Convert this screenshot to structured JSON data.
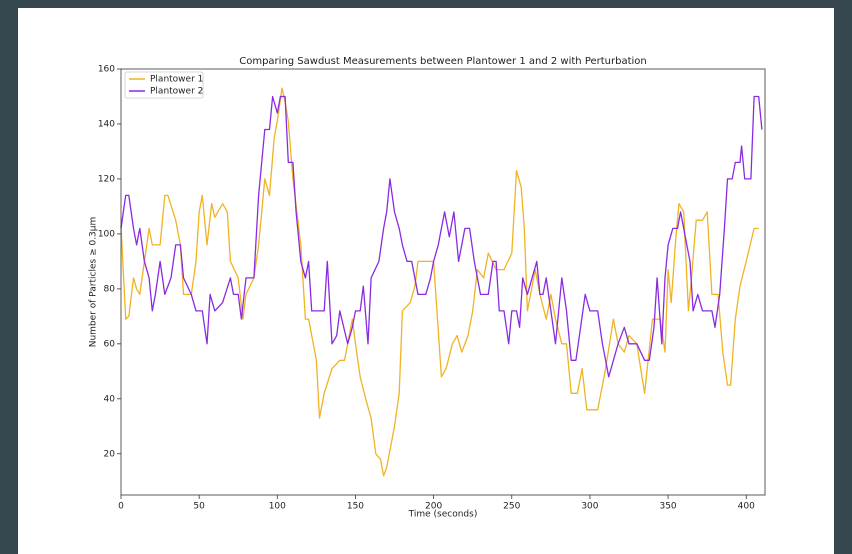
{
  "chart_data": {
    "type": "line",
    "title": "Comparing Sawdust Measurements between Plantower 1 and 2 with Perturbation",
    "x_label": "Time (seconds)",
    "y_label": "Number of Particles ≥ 0.3μm",
    "xlim": [
      0,
      412
    ],
    "ylim": [
      5,
      160
    ],
    "xticks": [
      0,
      50,
      100,
      150,
      200,
      250,
      300,
      350,
      400
    ],
    "yticks": [
      20,
      40,
      60,
      80,
      100,
      120,
      140,
      160
    ],
    "legend": "upper left",
    "series": [
      {
        "name": "Plantower 1",
        "color": "#f0b323",
        "x": [
          0,
          3,
          5,
          8,
          10,
          12,
          15,
          18,
          20,
          25,
          28,
          30,
          35,
          38,
          40,
          45,
          48,
          50,
          52,
          55,
          58,
          60,
          65,
          68,
          70,
          75,
          78,
          80,
          85,
          88,
          92,
          95,
          98,
          100,
          103,
          105,
          107,
          110,
          115,
          118,
          120,
          125,
          127,
          130,
          135,
          140,
          143,
          145,
          148,
          150,
          153,
          157,
          160,
          163,
          166,
          168,
          170,
          175,
          178,
          180,
          185,
          188,
          190,
          195,
          200,
          205,
          208,
          212,
          215,
          218,
          222,
          225,
          228,
          232,
          235,
          240,
          245,
          250,
          253,
          256,
          258,
          260,
          265,
          268,
          272,
          275,
          278,
          282,
          285,
          288,
          292,
          295,
          298,
          305,
          310,
          315,
          318,
          322,
          325,
          330,
          335,
          340,
          345,
          348,
          350,
          352,
          355,
          357,
          360,
          363,
          365,
          368,
          372,
          375,
          378,
          382,
          385,
          388,
          390,
          393,
          396,
          400,
          405,
          408
        ],
        "values": [
          103,
          69,
          70,
          84,
          80,
          78,
          90,
          102,
          96,
          96,
          114,
          114,
          105,
          96,
          78,
          78,
          90,
          108,
          114,
          96,
          111,
          106,
          111,
          108,
          90,
          84,
          69,
          78,
          84,
          96,
          120,
          114,
          135,
          141,
          153,
          148,
          141,
          120,
          96,
          69,
          69,
          54,
          33,
          42,
          51,
          54,
          54,
          60,
          69,
          60,
          48,
          39,
          33,
          20,
          18,
          12,
          15,
          30,
          42,
          72,
          75,
          81,
          90,
          90,
          90,
          48,
          51,
          60,
          63,
          57,
          63,
          72,
          87,
          84,
          93,
          87,
          87,
          93,
          123,
          117,
          102,
          72,
          87,
          78,
          69,
          78,
          69,
          60,
          60,
          42,
          42,
          51,
          36,
          36,
          51,
          69,
          60,
          57,
          63,
          60,
          42,
          69,
          69,
          57,
          87,
          75,
          99,
          111,
          108,
          72,
          84,
          105,
          105,
          108,
          78,
          78,
          57,
          45,
          45,
          69,
          81,
          90,
          102,
          102
        ]
      },
      {
        "name": "Plantower 2",
        "color": "#8a2be2",
        "x": [
          0,
          3,
          5,
          8,
          10,
          12,
          15,
          18,
          20,
          22,
          25,
          28,
          32,
          35,
          38,
          40,
          45,
          48,
          52,
          55,
          57,
          60,
          65,
          70,
          72,
          75,
          77,
          80,
          85,
          88,
          92,
          95,
          97,
          100,
          102,
          105,
          107,
          110,
          112,
          115,
          118,
          120,
          122,
          125,
          130,
          132,
          135,
          138,
          140,
          145,
          148,
          150,
          153,
          155,
          158,
          160,
          165,
          168,
          170,
          172,
          175,
          178,
          180,
          183,
          186,
          190,
          195,
          198,
          200,
          203,
          205,
          207,
          210,
          213,
          216,
          220,
          223,
          226,
          228,
          230,
          235,
          238,
          240,
          242,
          245,
          248,
          250,
          253,
          255,
          257,
          260,
          263,
          266,
          268,
          270,
          272,
          275,
          278,
          282,
          285,
          288,
          291,
          294,
          297,
          300,
          305,
          308,
          310,
          312,
          315,
          318,
          322,
          325,
          330,
          335,
          338,
          341,
          343,
          346,
          348,
          350,
          353,
          356,
          358,
          360,
          362,
          364,
          366,
          369,
          372,
          375,
          378,
          380,
          383,
          386,
          388,
          391,
          393,
          396,
          397,
          399,
          403,
          405,
          408,
          410
        ],
        "values": [
          102,
          114,
          114,
          102,
          96,
          102,
          90,
          84,
          72,
          78,
          90,
          78,
          84,
          96,
          96,
          84,
          78,
          72,
          72,
          60,
          78,
          72,
          75,
          84,
          78,
          78,
          69,
          84,
          84,
          114,
          138,
          138,
          150,
          144,
          150,
          150,
          126,
          126,
          108,
          90,
          84,
          90,
          72,
          72,
          72,
          90,
          60,
          63,
          72,
          60,
          66,
          72,
          72,
          81,
          60,
          84,
          90,
          102,
          108,
          120,
          108,
          102,
          96,
          90,
          90,
          78,
          78,
          84,
          90,
          96,
          102,
          108,
          99,
          108,
          90,
          102,
          102,
          90,
          84,
          78,
          78,
          90,
          90,
          72,
          72,
          60,
          72,
          72,
          66,
          84,
          78,
          84,
          90,
          78,
          78,
          84,
          72,
          60,
          84,
          72,
          54,
          54,
          66,
          78,
          72,
          72,
          60,
          54,
          48,
          54,
          60,
          66,
          60,
          60,
          54,
          54,
          66,
          84,
          60,
          84,
          96,
          102,
          102,
          108,
          102,
          96,
          90,
          72,
          78,
          72,
          72,
          72,
          66,
          78,
          102,
          120,
          120,
          126,
          126,
          132,
          120,
          120,
          150,
          150,
          138
        ]
      }
    ]
  }
}
